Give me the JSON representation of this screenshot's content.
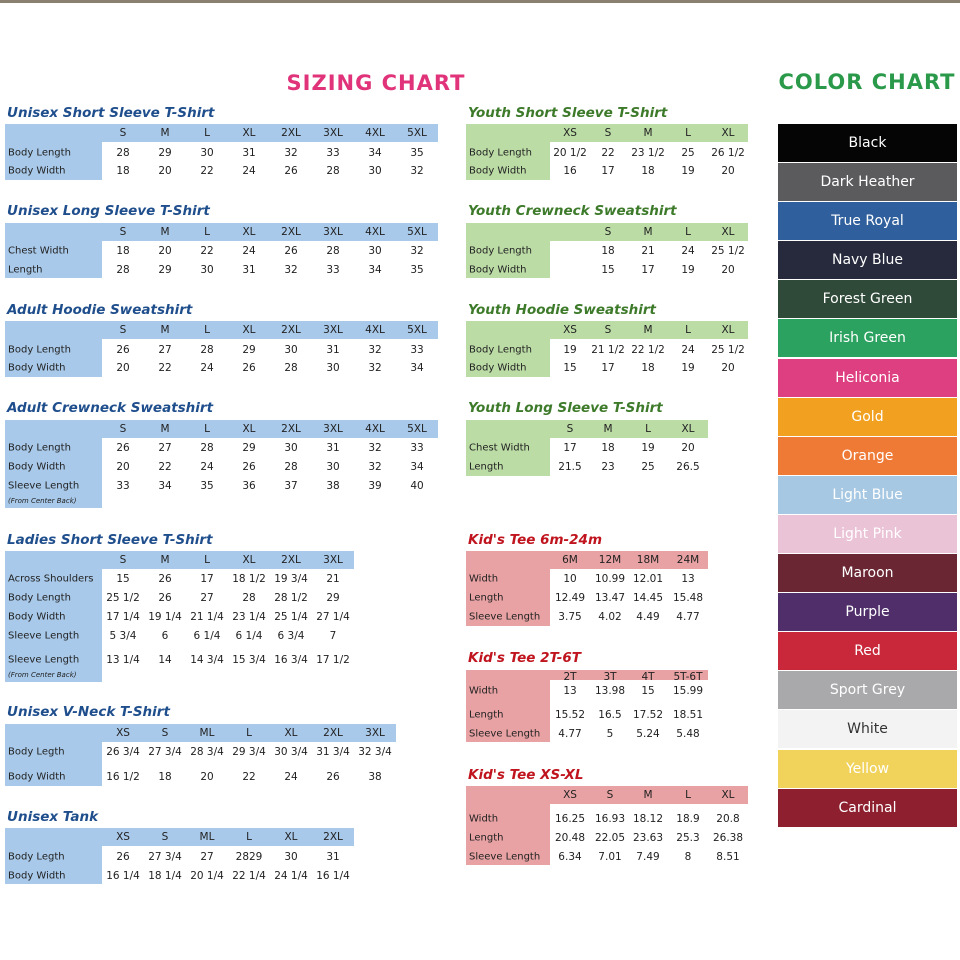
{
  "sizing_chart": {
    "title": "SIZING CHART",
    "title_color": "#e0337a",
    "left_tables": [
      {
        "title": "Unisex Short Sleeve T-Shirt",
        "sizes": [
          "S",
          "M",
          "L",
          "XL",
          "2XL",
          "3XL",
          "4XL",
          "5XL"
        ],
        "rows": [
          {
            "label": "Body Length",
            "values": [
              "28",
              "29",
              "30",
              "31",
              "32",
              "33",
              "34",
              "35"
            ]
          },
          {
            "label": "Body Width",
            "values": [
              "18",
              "20",
              "22",
              "24",
              "26",
              "28",
              "30",
              "32"
            ]
          }
        ]
      },
      {
        "title": "Unisex Long Sleeve T-Shirt",
        "sizes": [
          "S",
          "M",
          "L",
          "XL",
          "2XL",
          "3XL",
          "4XL",
          "5XL"
        ],
        "rows": [
          {
            "label": "Chest Width",
            "values": [
              "18",
              "20",
              "22",
              "24",
              "26",
              "28",
              "30",
              "32"
            ]
          },
          {
            "label": "Length",
            "values": [
              "28",
              "29",
              "30",
              "31",
              "32",
              "33",
              "34",
              "35"
            ]
          }
        ]
      },
      {
        "title": "Adult Hoodie Sweatshirt",
        "sizes": [
          "S",
          "M",
          "L",
          "XL",
          "2XL",
          "3XL",
          "4XL",
          "5XL"
        ],
        "rows": [
          {
            "label": "Body Length",
            "values": [
              "26",
              "27",
              "28",
              "29",
              "30",
              "31",
              "32",
              "33"
            ]
          },
          {
            "label": "Body Width",
            "values": [
              "20",
              "22",
              "24",
              "26",
              "28",
              "30",
              "32",
              "34"
            ]
          }
        ]
      },
      {
        "title": "Adult Crewneck Sweatshirt",
        "sizes": [
          "S",
          "M",
          "L",
          "XL",
          "2XL",
          "3XL",
          "4XL",
          "5XL"
        ],
        "rows": [
          {
            "label": "Body Length",
            "values": [
              "26",
              "27",
              "28",
              "29",
              "30",
              "31",
              "32",
              "33"
            ]
          },
          {
            "label": "Body Width",
            "values": [
              "20",
              "22",
              "24",
              "26",
              "28",
              "30",
              "32",
              "34"
            ]
          },
          {
            "label": "Sleeve Length",
            "sub": "(From Center Back)",
            "values": [
              "33",
              "34",
              "35",
              "36",
              "37",
              "38",
              "39",
              "40"
            ]
          }
        ]
      },
      {
        "title": "Ladies Short Sleeve T-Shirt",
        "sizes": [
          "S",
          "M",
          "L",
          "XL",
          "2XL",
          "3XL"
        ],
        "rows": [
          {
            "label": "Across Shoulders",
            "values": [
              "15",
              "26",
              "17",
              "18 1/2",
              "19 3/4",
              "21"
            ]
          },
          {
            "label": "Body Length",
            "values": [
              "25 1/2",
              "26",
              "27",
              "28",
              "28 1/2",
              "29"
            ]
          },
          {
            "label": "Body Width",
            "values": [
              "17 1/4",
              "19 1/4",
              "21 1/4",
              "23 1/4",
              "25 1/4",
              "27 1/4"
            ]
          },
          {
            "label": "Sleeve Length",
            "values": [
              "5 3/4",
              "6",
              "6 1/4",
              "6 1/4",
              "6 3/4",
              "7"
            ]
          },
          {
            "label": "Sleeve Length",
            "sub": "(From Center Back)",
            "values": [
              "13 1/4",
              "14",
              "14 3/4",
              "15 3/4",
              "16 3/4",
              "17 1/2"
            ]
          }
        ]
      },
      {
        "title": "Unisex V-Neck T-Shirt",
        "sizes": [
          "XS",
          "S",
          "ML",
          "L",
          "XL",
          "2XL",
          "3XL"
        ],
        "rows": [
          {
            "label": "Body Legth",
            "values": [
              "26 3/4",
              "27 3/4",
              "28 3/4",
              "29 3/4",
              "30 3/4",
              "31 3/4",
              "32 3/4"
            ]
          },
          {
            "label": "Body Width",
            "values": [
              "16 1/2",
              "18",
              "20",
              "22",
              "24",
              "26",
              "38"
            ]
          }
        ]
      },
      {
        "title": "Unisex Tank",
        "sizes": [
          "XS",
          "S",
          "ML",
          "L",
          "XL",
          "2XL"
        ],
        "rows": [
          {
            "label": "Body Legth",
            "values": [
              "26",
              "27 3/4",
              "27",
              "2829",
              "30",
              "31"
            ]
          },
          {
            "label": "Body Width",
            "values": [
              "16 1/4",
              "18 1/4",
              "20 1/4",
              "22 1/4",
              "24 1/4",
              "16 1/4"
            ]
          }
        ]
      }
    ],
    "right_tables": [
      {
        "title": "Youth Short Sleeve T-Shirt",
        "sizes": [
          "XS",
          "S",
          "M",
          "L",
          "XL"
        ],
        "rows": [
          {
            "label": "Body Length",
            "values": [
              "20 1/2",
              "22",
              "23 1/2",
              "25",
              "26 1/2"
            ]
          },
          {
            "label": "Body Width",
            "values": [
              "16",
              "17",
              "18",
              "19",
              "20"
            ]
          }
        ]
      },
      {
        "title": "Youth Crewneck Sweatshirt",
        "sizes": [
          "S",
          "M",
          "L",
          "XL"
        ],
        "rows": [
          {
            "label": "Body Length",
            "values": [
              "18",
              "21",
              "24",
              "25 1/2"
            ]
          },
          {
            "label": "Body Width",
            "values": [
              "15",
              "17",
              "19",
              "20"
            ]
          }
        ]
      },
      {
        "title": "Youth Hoodie Sweatshirt",
        "sizes": [
          "XS",
          "S",
          "M",
          "L",
          "XL"
        ],
        "rows": [
          {
            "label": "Body Length",
            "values": [
              "19",
              "21 1/2",
              "22 1/2",
              "24",
              "25 1/2"
            ]
          },
          {
            "label": "Body Width",
            "values": [
              "15",
              "17",
              "18",
              "19",
              "20"
            ]
          }
        ]
      },
      {
        "title": "Youth Long Sleeve T-Shirt",
        "sizes": [
          "S",
          "M",
          "L",
          "XL"
        ],
        "rows": [
          {
            "label": "Chest Width",
            "values": [
              "17",
              "18",
              "19",
              "20"
            ]
          },
          {
            "label": "Length",
            "values": [
              "21.5",
              "23",
              "25",
              "26.5"
            ]
          }
        ]
      },
      {
        "title": "Kid's Tee 6m-24m",
        "sizes": [
          "6M",
          "12M",
          "18M",
          "24M"
        ],
        "rows": [
          {
            "label": "Width",
            "values": [
              "10",
              "10.99",
              "12.01",
              "13"
            ]
          },
          {
            "label": "Length",
            "values": [
              "12.49",
              "13.47",
              "14.45",
              "15.48"
            ]
          },
          {
            "label": "Sleeve Length",
            "values": [
              "3.75",
              "4.02",
              "4.49",
              "4.77"
            ]
          }
        ]
      },
      {
        "title": "Kid's Tee 2T-6T",
        "sizes": [
          "2T",
          "3T",
          "4T",
          "5T-6T"
        ],
        "rows": [
          {
            "label": "Width",
            "values": [
              "13",
              "13.98",
              "15",
              "15.99"
            ]
          },
          {
            "label": "Length",
            "values": [
              "15.52",
              "16.5",
              "17.52",
              "18.51"
            ]
          },
          {
            "label": "Sleeve Length",
            "values": [
              "4.77",
              "5",
              "5.24",
              "5.48"
            ]
          }
        ]
      },
      {
        "title": "Kid's Tee XS-XL",
        "sizes": [
          "XS",
          "S",
          "M",
          "L",
          "XL"
        ],
        "rows": [
          {
            "label": "Width",
            "values": [
              "16.25",
              "16.93",
              "18.12",
              "18.9",
              "20.8"
            ]
          },
          {
            "label": "Length",
            "values": [
              "20.48",
              "22.05",
              "23.63",
              "25.3",
              "26.38"
            ]
          },
          {
            "label": "Sleeve Length",
            "values": [
              "6.34",
              "7.01",
              "7.49",
              "8",
              "8.51"
            ]
          }
        ]
      }
    ],
    "colors": {
      "adult_title": "#1f4e8c",
      "adult_shade": "#a8c9ea",
      "youth_title": "#3d7a2a",
      "youth_shade": "#bcdca6",
      "kids_title": "#c0141e",
      "kids_shade": "#e8a2a4"
    }
  },
  "color_chart": {
    "title": "COLOR CHART",
    "title_color": "#2a9a4a",
    "colors": [
      {
        "name": "Black",
        "hex": "#050505"
      },
      {
        "name": "Dark Heather",
        "hex": "#5b5b5d"
      },
      {
        "name": "True Royal",
        "hex": "#2f5f9c"
      },
      {
        "name": "Navy Blue",
        "hex": "#262a3c"
      },
      {
        "name": "Forest Green",
        "hex": "#2f4a39"
      },
      {
        "name": "Irish Green",
        "hex": "#2ba25f"
      },
      {
        "name": "Heliconia",
        "hex": "#de3f80"
      },
      {
        "name": "Gold",
        "hex": "#f1a01f"
      },
      {
        "name": "Orange",
        "hex": "#ee7a36"
      },
      {
        "name": "Light Blue",
        "hex": "#a7c8e2"
      },
      {
        "name": "Light Pink",
        "hex": "#ebc3d7"
      },
      {
        "name": "Maroon",
        "hex": "#6a2733"
      },
      {
        "name": "Purple",
        "hex": "#4f2e6a"
      },
      {
        "name": "Red",
        "hex": "#c8283a"
      },
      {
        "name": "Sport Grey",
        "hex": "#a9a9ab"
      },
      {
        "name": "White",
        "hex": "#f3f3f3"
      },
      {
        "name": "Yellow",
        "hex": "#f1d35c"
      },
      {
        "name": "Cardinal",
        "hex": "#8d1f2e"
      }
    ]
  }
}
